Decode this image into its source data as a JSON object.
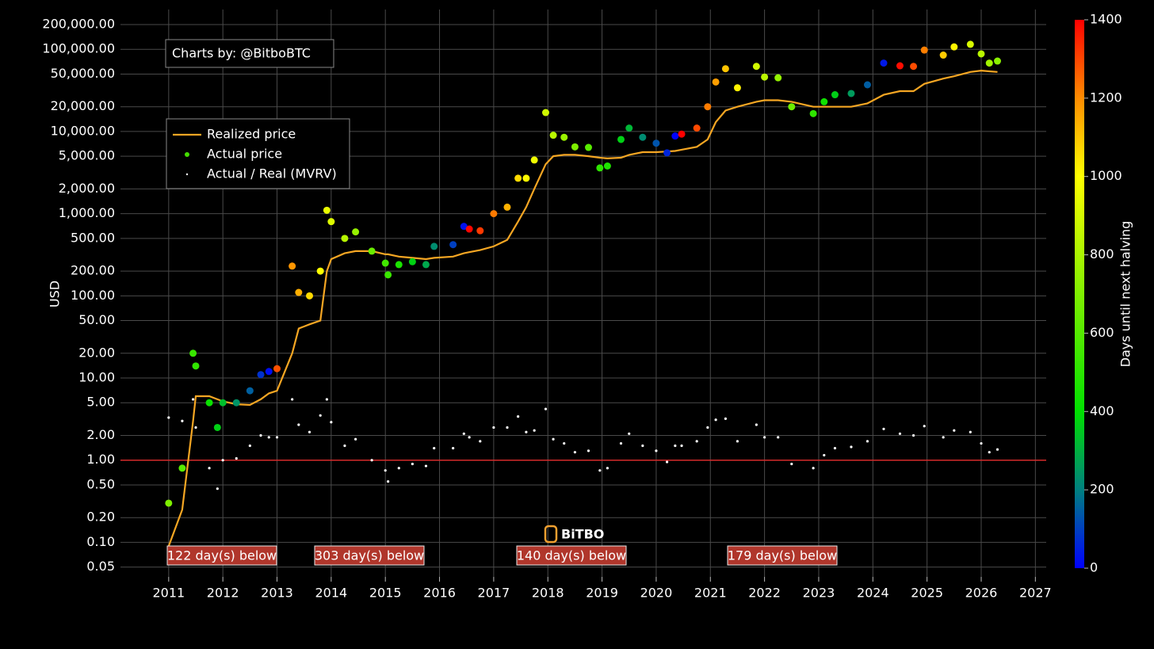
{
  "chart_data": {
    "type": "scatter",
    "credit": "Charts by: @BitboBTC",
    "watermark": "BiTBO",
    "ylabel": "USD",
    "log_y": true,
    "grid": true,
    "xlim": [
      2010.11,
      2027.2
    ],
    "xticks": [
      2011,
      2012,
      2013,
      2014,
      2015,
      2016,
      2017,
      2018,
      2019,
      2020,
      2021,
      2022,
      2023,
      2024,
      2025,
      2026,
      2027
    ],
    "ylim": [
      0.038,
      305000
    ],
    "yticks": [
      {
        "value": 0.05,
        "label": "0.05"
      },
      {
        "value": 0.1,
        "label": "0.10"
      },
      {
        "value": 0.2,
        "label": "0.20"
      },
      {
        "value": 0.5,
        "label": "0.50"
      },
      {
        "value": 1,
        "label": "1.00"
      },
      {
        "value": 2,
        "label": "2.00"
      },
      {
        "value": 5,
        "label": "5.00"
      },
      {
        "value": 10,
        "label": "10.00"
      },
      {
        "value": 20,
        "label": "20.00"
      },
      {
        "value": 50,
        "label": "50.00"
      },
      {
        "value": 100,
        "label": "100.00"
      },
      {
        "value": 200,
        "label": "200.00"
      },
      {
        "value": 500,
        "label": "500.00"
      },
      {
        "value": 1000,
        "label": "1,000.00"
      },
      {
        "value": 2000,
        "label": "2,000.00"
      },
      {
        "value": 5000,
        "label": "5,000.00"
      },
      {
        "value": 10000,
        "label": "10,000.00"
      },
      {
        "value": 20000,
        "label": "20,000.00"
      },
      {
        "value": 50000,
        "label": "50,000.00"
      },
      {
        "value": 100000,
        "label": "100,000.00"
      },
      {
        "value": 200000,
        "label": "200,000.00"
      }
    ],
    "reference_line": {
      "value": 1,
      "color": "#d42a2a"
    },
    "colorbar": {
      "label": "Days until next halving",
      "clim": [
        0,
        1400
      ],
      "ticks": [
        0,
        200,
        400,
        600,
        800,
        1000,
        1200,
        1400
      ],
      "colorscale": [
        [
          0,
          "#0000ff"
        ],
        [
          200,
          "#008080"
        ],
        [
          400,
          "#00e000"
        ],
        [
          1000,
          "#ffff00"
        ],
        [
          1200,
          "#ff8c00"
        ],
        [
          1400,
          "#ff0000"
        ]
      ]
    },
    "annotations": [
      "122 day(s) below",
      "303 day(s) below",
      "140 day(s) below",
      "179 day(s) below"
    ],
    "x": [
      2011.0,
      2011.25,
      2011.45,
      2011.5,
      2011.75,
      2011.9,
      2012.0,
      2012.25,
      2012.5,
      2012.7,
      2012.85,
      2013.0,
      2013.28,
      2013.4,
      2013.6,
      2013.8,
      2013.92,
      2014.0,
      2014.25,
      2014.45,
      2014.75,
      2015.0,
      2015.05,
      2015.25,
      2015.5,
      2015.75,
      2015.9,
      2016.25,
      2016.45,
      2016.55,
      2016.75,
      2017.0,
      2017.25,
      2017.45,
      2017.6,
      2017.75,
      2017.96,
      2018.1,
      2018.3,
      2018.5,
      2018.75,
      2018.96,
      2019.1,
      2019.35,
      2019.5,
      2019.75,
      2020.0,
      2020.2,
      2020.35,
      2020.47,
      2020.75,
      2020.95,
      2021.1,
      2021.28,
      2021.5,
      2021.85,
      2022.0,
      2022.25,
      2022.5,
      2022.9,
      2023.1,
      2023.3,
      2023.6,
      2023.9,
      2024.2,
      2024.5,
      2024.75,
      2024.95,
      2025.3,
      2025.5,
      2025.8,
      2026.0,
      2026.15,
      2026.3
    ],
    "series": [
      {
        "name": "Realized price",
        "color": "#f5a623",
        "values": [
          0.09,
          0.25,
          3,
          6,
          6,
          5.5,
          5.2,
          4.8,
          4.7,
          5.5,
          6.5,
          7,
          20,
          40,
          45,
          50,
          200,
          280,
          330,
          350,
          350,
          320,
          320,
          300,
          290,
          280,
          290,
          300,
          330,
          340,
          360,
          400,
          480,
          800,
          1200,
          2000,
          4000,
          5000,
          5200,
          5200,
          5000,
          4800,
          4700,
          4800,
          5200,
          5600,
          5600,
          5700,
          5800,
          6000,
          6500,
          8000,
          13000,
          18000,
          20000,
          23000,
          24000,
          24000,
          23000,
          20000,
          20000,
          20000,
          20000,
          22000,
          28000,
          31000,
          31000,
          38000,
          44000,
          47000,
          53000,
          55000,
          54000,
          53000
        ]
      },
      {
        "name": "Actual price",
        "color": "#44dd00",
        "values": [
          0.3,
          0.8,
          20,
          14,
          5,
          2.5,
          5,
          5,
          7,
          11,
          12,
          13,
          230,
          110,
          100,
          200,
          1100,
          800,
          500,
          600,
          350,
          250,
          180,
          240,
          260,
          240,
          400,
          420,
          700,
          650,
          620,
          1000,
          1200,
          2700,
          2700,
          4500,
          17000,
          9000,
          8500,
          6500,
          6400,
          3600,
          3800,
          8000,
          11000,
          8500,
          7200,
          5500,
          8800,
          9300,
          11000,
          20000,
          40000,
          58000,
          34000,
          62000,
          46000,
          45000,
          20000,
          16500,
          23000,
          28000,
          29000,
          37000,
          68000,
          63000,
          62000,
          98000,
          85000,
          107000,
          115000,
          88000,
          68000,
          72000
        ],
        "color_values": [
          697,
          606,
          533,
          515,
          423,
          369,
          332,
          241,
          150,
          77,
          22,
          1285,
          1183,
          1139,
          1066,
          993,
          949,
          920,
          829,
          756,
          646,
          555,
          537,
          464,
          372,
          281,
          226,
          99,
          26,
          1391,
          1318,
          1226,
          1135,
          1062,
          1007,
          963,
          887,
          836,
          763,
          697,
          606,
          509,
          471,
          369,
          314,
          223,
          131,
          58,
          4,
          1398,
          1296,
          1223,
          1168,
          1102,
          1022,
          894,
          839,
          748,
          657,
          511,
          438,
          365,
          256,
          146,
          37,
          1383,
          1292,
          1219,
          1091,
          1018,
          909,
          836,
          781,
          727
        ]
      },
      {
        "name": "Actual / Real (MVRV)",
        "color": "#ffffff",
        "values": [
          3.3,
          3,
          5.5,
          2.5,
          0.8,
          0.45,
          1.0,
          1.05,
          1.5,
          2.0,
          1.9,
          1.9,
          5.5,
          2.7,
          2.2,
          3.5,
          5.5,
          2.9,
          1.5,
          1.8,
          1.0,
          0.75,
          0.55,
          0.8,
          0.9,
          0.85,
          1.4,
          1.4,
          2.1,
          1.9,
          1.7,
          2.5,
          2.5,
          3.4,
          2.2,
          2.3,
          4.2,
          1.8,
          1.6,
          1.25,
          1.3,
          0.75,
          0.8,
          1.6,
          2.1,
          1.5,
          1.3,
          0.95,
          1.5,
          1.5,
          1.7,
          2.5,
          3.1,
          3.2,
          1.7,
          2.7,
          1.9,
          1.9,
          0.9,
          0.8,
          1.15,
          1.4,
          1.45,
          1.7,
          2.4,
          2.1,
          2.0,
          2.6,
          1.9,
          2.3,
          2.2,
          1.6,
          1.25,
          1.35
        ]
      }
    ]
  }
}
